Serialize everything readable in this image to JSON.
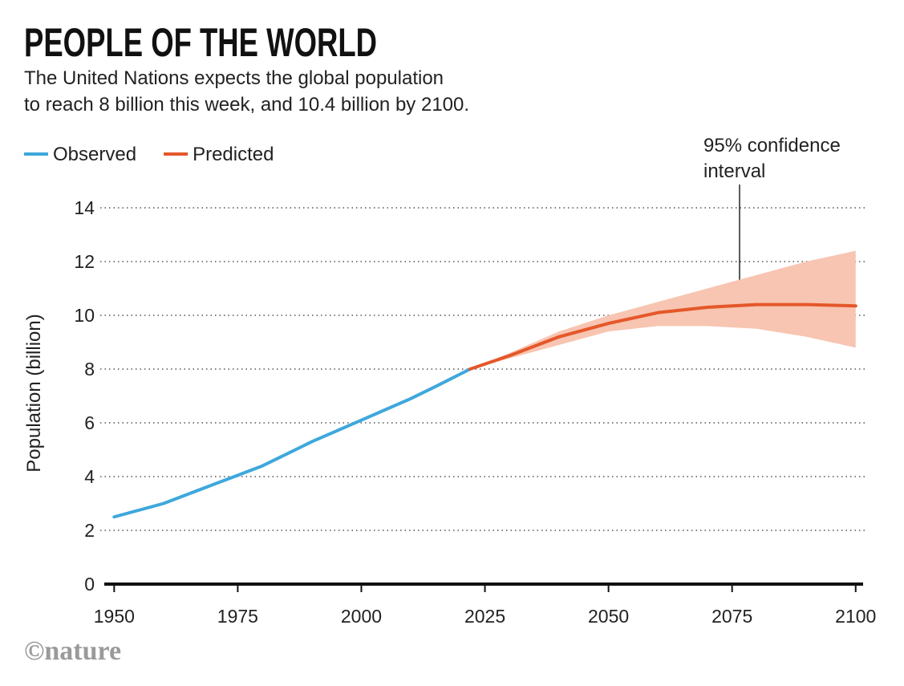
{
  "chart_data": {
    "type": "line",
    "title": "PEOPLE OF THE WORLD",
    "subtitle": [
      "The United Nations expects the global population",
      "to reach 8 billion this week, and 10.4 billion by 2100."
    ],
    "y_label": "Population (billion)",
    "annotation": [
      "95% confidence",
      "interval"
    ],
    "credit": "©nature",
    "series": [
      {
        "name": "Observed",
        "color": "#3ea8dc",
        "x": [
          1950,
          1955,
          1960,
          1965,
          1970,
          1975,
          1980,
          1985,
          1990,
          1995,
          2000,
          2005,
          2010,
          2015,
          2022
        ],
        "values": [
          2.5,
          2.75,
          3.0,
          3.35,
          3.7,
          4.05,
          4.4,
          4.85,
          5.3,
          5.7,
          6.1,
          6.5,
          6.9,
          7.35,
          8.0
        ]
      },
      {
        "name": "Predicted",
        "color": "#e5572a",
        "x": [
          2022,
          2030,
          2040,
          2050,
          2060,
          2070,
          2080,
          2090,
          2100
        ],
        "values": [
          8.0,
          8.5,
          9.2,
          9.7,
          10.1,
          10.3,
          10.4,
          10.4,
          10.35
        ]
      }
    ],
    "band": {
      "color": "#f7c5b1",
      "x": [
        2022,
        2030,
        2040,
        2050,
        2060,
        2070,
        2080,
        2090,
        2100
      ],
      "lower": [
        8.0,
        8.4,
        8.9,
        9.4,
        9.6,
        9.6,
        9.5,
        9.2,
        8.8
      ],
      "upper": [
        8.0,
        8.6,
        9.4,
        10.0,
        10.5,
        11.0,
        11.5,
        12.0,
        12.4
      ]
    },
    "xlim": [
      1948,
      2101.5
    ],
    "xticks": [
      1950,
      1975,
      2000,
      2025,
      2050,
      2075,
      2100
    ],
    "ylim": [
      0,
      14
    ],
    "yticks": [
      0,
      2,
      4,
      6,
      8,
      10,
      12,
      14
    ],
    "grid": true
  }
}
